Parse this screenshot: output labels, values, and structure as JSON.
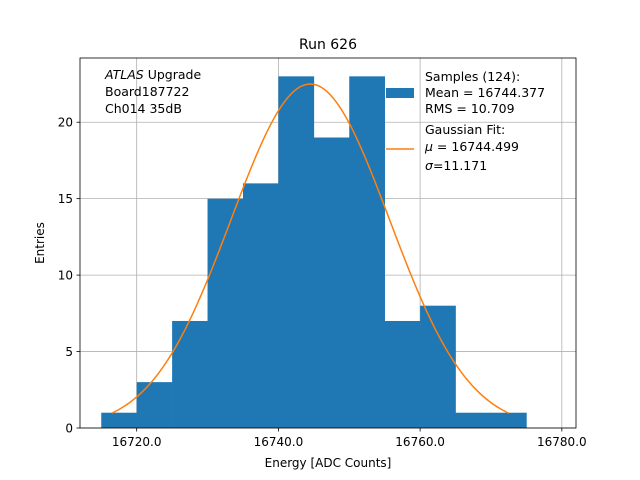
{
  "chart_data": {
    "type": "bar",
    "title": "Run 626",
    "xlabel": "Energy [ADC Counts]",
    "ylabel": "Entries",
    "xlim": [
      16712.0,
      16782.0
    ],
    "ylim": [
      0,
      24.2
    ],
    "grid": true,
    "x_ticks": [
      {
        "value": 16720,
        "label": "16720.0"
      },
      {
        "value": 16740,
        "label": "16740.0"
      },
      {
        "value": 16760,
        "label": "16760.0"
      },
      {
        "value": 16780,
        "label": "16780.0"
      }
    ],
    "y_ticks": [
      {
        "value": 0,
        "label": "0"
      },
      {
        "value": 5,
        "label": "5"
      },
      {
        "value": 10,
        "label": "10"
      },
      {
        "value": 15,
        "label": "15"
      },
      {
        "value": 20,
        "label": "20"
      }
    ],
    "bin_edges": [
      16715,
      16720,
      16725,
      16730,
      16735,
      16740,
      16745,
      16750,
      16755,
      16760,
      16765,
      16770,
      16775
    ],
    "series": [
      {
        "name": "Samples (124):",
        "kind": "histogram",
        "color": "#1f77b4",
        "values": [
          1,
          3,
          7,
          15,
          16,
          23,
          19,
          23,
          7,
          8,
          1,
          1
        ]
      },
      {
        "name": "Gaussian Fit:",
        "kind": "line",
        "color": "#ff7f0e",
        "mu": 16744.499,
        "sigma": 11.171,
        "peak": 22.5,
        "x_range": [
          16716.5,
          16772.5
        ]
      }
    ],
    "legend": {
      "placement": "top-right",
      "samples_title": "Samples (124):",
      "samples_mean": " Mean = 16744.377",
      "samples_rms": " RMS = 10.709",
      "fit_title": "Gaussian Fit:",
      "fit_mu_sym": "μ",
      "fit_mu_val": " = 16744.499",
      "fit_sigma_sym": "σ",
      "fit_sigma_val": "=11.171"
    },
    "annotation": {
      "experiment": "ATLAS",
      "experiment_suffix": " Upgrade",
      "board": " Board187722",
      "channel": " Ch014 35dB"
    }
  }
}
